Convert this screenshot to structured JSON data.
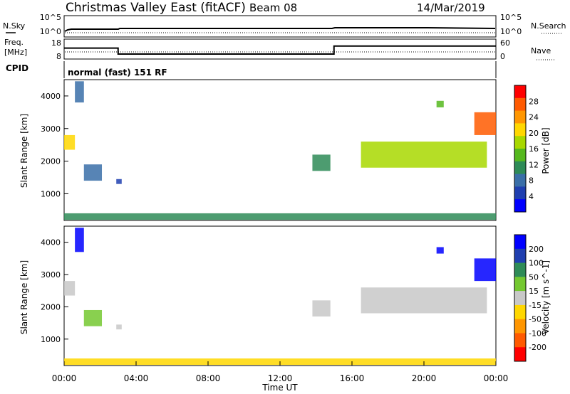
{
  "header": {
    "title": "Christmas Valley East (fitACF)",
    "beam": "Beam 08",
    "date": "14/Mar/2019"
  },
  "noise_panel": {
    "left_label": "N.Sky",
    "right_label": "N.Search",
    "left_ticks": [
      "10^5",
      "10^0"
    ],
    "right_ticks": [
      "10^5",
      "10^0"
    ]
  },
  "freq_panel": {
    "left_label_line1": "Freq.",
    "left_label_line2": "[MHz]",
    "left_ticks": [
      "18",
      "8"
    ],
    "right_label": "Nave",
    "right_ticks": [
      "60",
      "0"
    ],
    "freq_steps": [
      {
        "start_hour": 0,
        "end_hour": 3,
        "freq_mhz": 13.5
      },
      {
        "start_hour": 3,
        "end_hour": 15,
        "freq_mhz": 10.5
      },
      {
        "start_hour": 15,
        "end_hour": 24,
        "freq_mhz": 14.5
      }
    ]
  },
  "cpid": {
    "label": "CPID",
    "mode": "normal (fast) 151 RF"
  },
  "power_panel": {
    "ylabel": "Slant Range [km]",
    "yticks": [
      "4000",
      "3000",
      "2000",
      "1000"
    ],
    "colorbar_label": "Power [dB]",
    "colorbar_ticks": [
      "28",
      "24",
      "20",
      "16",
      "12",
      "8",
      "4"
    ],
    "colorbar_colors": [
      "#ff0000",
      "#ff5a00",
      "#ff9600",
      "#ffd700",
      "#a8d800",
      "#55b81e",
      "#2e8b57",
      "#3a6fa8",
      "#1f3fb0",
      "#0000ff"
    ]
  },
  "velocity_panel": {
    "ylabel": "Slant Range [km]",
    "yticks": [
      "4000",
      "3000",
      "2000",
      "1000"
    ],
    "colorbar_label": "Velocity [m s^-1]",
    "colorbar_ticks": [
      "200",
      "100",
      "50",
      "15",
      "-15",
      "-50",
      "-100",
      "-200"
    ],
    "colorbar_colors": [
      "#0000ff",
      "#1f3fb0",
      "#2e8b57",
      "#74c830",
      "#c8c8c8",
      "#ffd700",
      "#ff9600",
      "#ff5a00",
      "#ff0000"
    ]
  },
  "xaxis": {
    "ticks": [
      "00:00",
      "04:00",
      "08:00",
      "12:00",
      "16:00",
      "20:00",
      "00:00"
    ],
    "label": "Time UT"
  },
  "chart_data": {
    "type": "heatmap",
    "x_range_hours": [
      0,
      24
    ],
    "y_range_km": [
      180,
      4500
    ],
    "power_regions": [
      {
        "t0": 0.0,
        "t1": 0.6,
        "r0": 2350,
        "r1": 2800,
        "power_db": 20
      },
      {
        "t0": 0.6,
        "t1": 1.1,
        "r0": 3800,
        "r1": 4450,
        "power_db": 8
      },
      {
        "t0": 1.1,
        "t1": 2.1,
        "r0": 1400,
        "r1": 1900,
        "power_db": 10
      },
      {
        "t0": 2.9,
        "t1": 3.2,
        "r0": 1300,
        "r1": 1450,
        "power_db": 6
      },
      {
        "t0": 13.8,
        "t1": 14.8,
        "r0": 1700,
        "r1": 2200,
        "power_db": 12
      },
      {
        "t0": 16.5,
        "t1": 23.5,
        "r0": 1800,
        "r1": 2600,
        "power_db": 18
      },
      {
        "t0": 20.7,
        "t1": 21.1,
        "r0": 3650,
        "r1": 3850,
        "power_db": 16
      },
      {
        "t0": 22.8,
        "t1": 24.0,
        "r0": 2800,
        "r1": 3500,
        "power_db": 26
      },
      {
        "t0": 0.0,
        "t1": 24.0,
        "r0": 200,
        "r1": 400,
        "power_db": 12
      }
    ],
    "velocity_regions": [
      {
        "t0": 0.0,
        "t1": 0.6,
        "r0": 2350,
        "r1": 2800,
        "velocity": 0
      },
      {
        "t0": 0.6,
        "t1": 1.1,
        "r0": 3700,
        "r1": 4450,
        "velocity": 200
      },
      {
        "t0": 1.1,
        "t1": 2.1,
        "r0": 1400,
        "r1": 1900,
        "velocity": 40
      },
      {
        "t0": 2.9,
        "t1": 3.2,
        "r0": 1300,
        "r1": 1450,
        "velocity": 0
      },
      {
        "t0": 13.8,
        "t1": 14.8,
        "r0": 1700,
        "r1": 2200,
        "velocity": 0
      },
      {
        "t0": 16.5,
        "t1": 23.5,
        "r0": 1800,
        "r1": 2600,
        "velocity": 0
      },
      {
        "t0": 20.7,
        "t1": 21.1,
        "r0": 3650,
        "r1": 3850,
        "velocity": 200
      },
      {
        "t0": 22.8,
        "t1": 24.0,
        "r0": 2800,
        "r1": 3500,
        "velocity": 200
      },
      {
        "t0": 0.0,
        "t1": 24.0,
        "r0": 200,
        "r1": 400,
        "velocity": -40
      }
    ]
  }
}
